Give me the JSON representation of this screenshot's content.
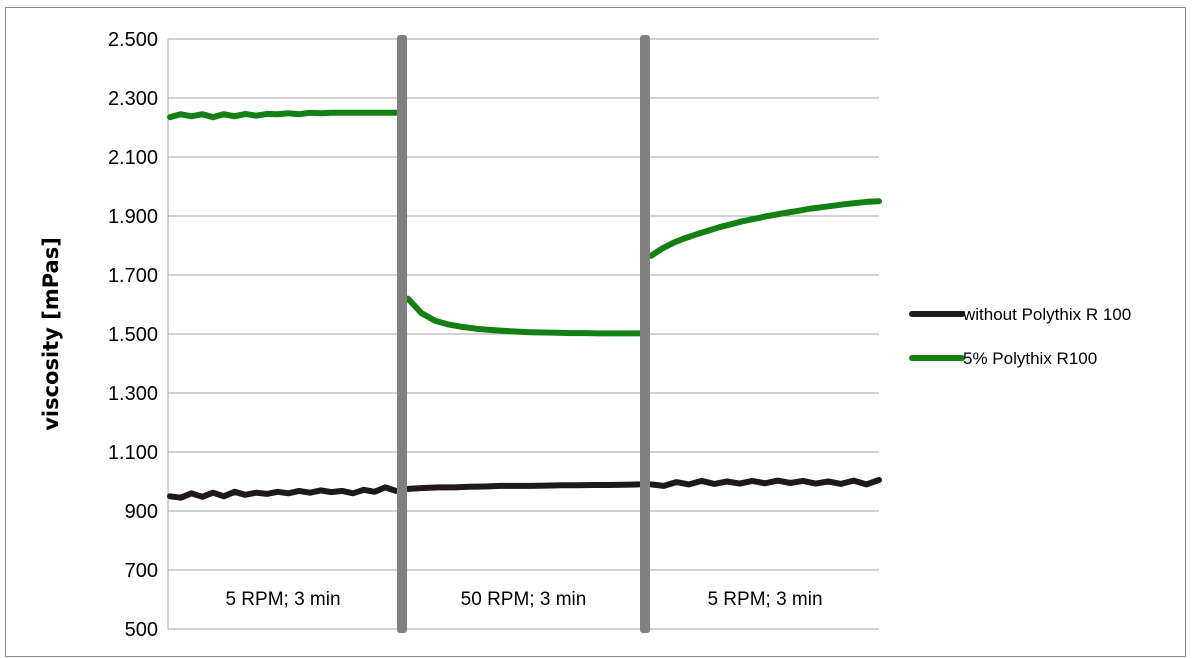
{
  "chart_data": {
    "type": "line",
    "title": "",
    "xlabel": "",
    "ylabel": "viscosity [mPas]",
    "ylim": [
      500,
      2500
    ],
    "yticks": [
      "2.500",
      "2.300",
      "2.100",
      "1.900",
      "1.700",
      "1.500",
      "1.300",
      "1.100",
      "900",
      "700",
      "500"
    ],
    "ytick_values": [
      2500,
      2300,
      2100,
      1900,
      1700,
      1500,
      1300,
      1100,
      900,
      700,
      500
    ],
    "grid": true,
    "legend_position": "right",
    "phases": [
      {
        "label": "5 RPM; 3 min"
      },
      {
        "label": "50 RPM; 3 min"
      },
      {
        "label": "5 RPM; 3 min"
      }
    ],
    "series": [
      {
        "name": "without Polythix R 100",
        "color": "#1f1a17",
        "phase_values": [
          [
            950,
            945,
            960,
            948,
            962,
            950,
            965,
            955,
            962,
            958,
            965,
            960,
            968,
            962,
            970,
            964,
            968,
            960,
            972,
            965,
            980,
            968
          ],
          [
            975,
            978,
            980,
            980,
            982,
            983,
            985,
            985,
            985,
            986,
            987,
            987,
            988,
            988,
            989,
            990
          ],
          [
            990,
            985,
            998,
            990,
            1002,
            992,
            1000,
            993,
            1002,
            994,
            1003,
            995,
            1002,
            993,
            1000,
            992,
            1003,
            990,
            1005
          ]
        ]
      },
      {
        "name": "5% Polythix R100",
        "color": "#138013",
        "phase_values": [
          [
            2235,
            2245,
            2238,
            2245,
            2235,
            2245,
            2238,
            2246,
            2240,
            2246,
            2245,
            2248,
            2245,
            2250,
            2248,
            2250,
            2250,
            2250,
            2250,
            2250,
            2250,
            2250
          ],
          [
            1620,
            1570,
            1545,
            1532,
            1524,
            1518,
            1514,
            1511,
            1508,
            1506,
            1505,
            1504,
            1503,
            1503,
            1502,
            1502,
            1502,
            1502
          ],
          [
            1765,
            1790,
            1810,
            1825,
            1838,
            1850,
            1862,
            1872,
            1882,
            1890,
            1898,
            1905,
            1912,
            1918,
            1925,
            1930,
            1935,
            1940,
            1944,
            1948,
            1950
          ]
        ]
      }
    ],
    "separators": [
      "phase-1-2",
      "phase-2-3"
    ],
    "separator_color": "#808080"
  }
}
